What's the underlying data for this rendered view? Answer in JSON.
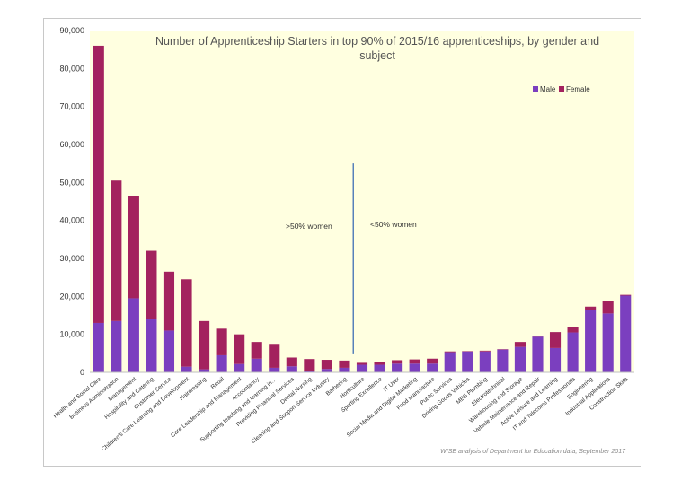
{
  "chart_data": {
    "type": "bar",
    "stacked": true,
    "title": "Number of Apprenticeship Starters in top 90% of 2015/16 apprenticeships, by gender and subject",
    "title_lines": [
      "Number of Apprenticeship Starters in top 90% of 2015/16 apprenticeships, by gender and",
      "subject"
    ],
    "xlabel": "",
    "ylabel": "",
    "ylim": [
      0,
      90000
    ],
    "yticks": [
      0,
      10000,
      20000,
      30000,
      40000,
      50000,
      60000,
      70000,
      80000,
      90000
    ],
    "ytick_labels": [
      "0",
      "10,000",
      "20,000",
      "30,000",
      "40,000",
      "50,000",
      "60,000",
      "70,000",
      "80,000",
      "90,000"
    ],
    "grid": false,
    "legend_position": "top-right",
    "categories": [
      "Health and Social Care",
      "Business Administration",
      "Management",
      "Hospitality and Catering",
      "Customer Service",
      "Children's Care Learning and Development",
      "Hairdressing",
      "Retail",
      "Care Leadership and Management",
      "Accountancy",
      "Supporting teaching and learning in…",
      "Providing Financial Services",
      "Dental Nursing",
      "Cleaning and Support Service Industry",
      "Barbering",
      "Horticulture",
      "Sporting Excellence",
      "IT User",
      "Social Media and Digital Marketing",
      "Food Manufacture",
      "Public Services",
      "Driving Goods Vehicles",
      "MES Plumbing",
      "Electrotechnical",
      "Warehousing and Storage",
      "Vehicle Maintenance and Repair",
      "Active Leisure and Learning",
      "IT and Telecoms Professionals",
      "Engineering",
      "Industrial Applications",
      "Construction Skills"
    ],
    "series": [
      {
        "name": "Male",
        "color": "#7b3fbf",
        "values": [
          13000,
          13500,
          19500,
          14000,
          11000,
          1500,
          800,
          4500,
          2200,
          3600,
          1200,
          1600,
          300,
          900,
          1200,
          2000,
          2000,
          2300,
          2300,
          2300,
          5300,
          5500,
          5500,
          6000,
          6700,
          9400,
          6400,
          10500,
          16500,
          15500,
          20200
        ]
      },
      {
        "name": "Female",
        "color": "#a3225e",
        "values": [
          73000,
          37000,
          27000,
          18000,
          15500,
          23000,
          12700,
          7000,
          7800,
          4400,
          6300,
          2300,
          3200,
          2400,
          1900,
          500,
          700,
          900,
          1100,
          1300,
          200,
          100,
          200,
          100,
          1300,
          200,
          4200,
          1500,
          800,
          3300,
          200
        ]
      }
    ],
    "annotations": [
      {
        "text": ">50% women",
        "side": "left of divider"
      },
      {
        "text": "<50% women",
        "side": "right of divider"
      }
    ],
    "divider_between": [
      "Barbering",
      "Horticulture"
    ],
    "source": "WISE analysis of Department for Education data, September 2017"
  },
  "colors": {
    "plot_background": "#ffffe0",
    "male": "#7b3fbf",
    "female": "#a3225e",
    "divider": "#3f6fb5"
  }
}
